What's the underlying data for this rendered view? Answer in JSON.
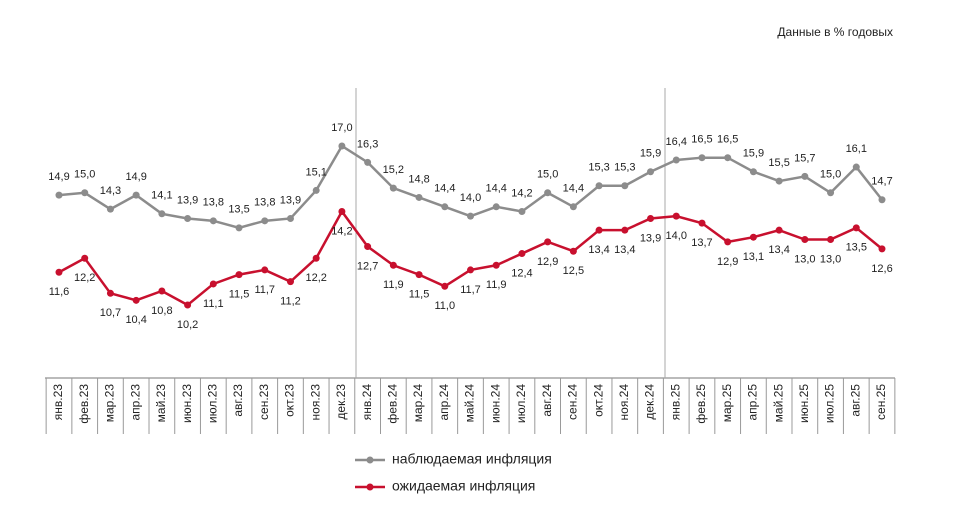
{
  "chart_data": {
    "type": "line",
    "subtitle": "Данные в % годовых",
    "categories": [
      "янв.23",
      "фев.23",
      "мар.23",
      "апр.23",
      "май.23",
      "июн.23",
      "июл.23",
      "авг.23",
      "сен.23",
      "окт.23",
      "ноя.23",
      "дек.23",
      "янв.24",
      "фев.24",
      "мар.24",
      "апр.24",
      "май.24",
      "июн.24",
      "июл.24",
      "авг.24",
      "сен.24",
      "окт.24",
      "ноя.24",
      "дек.24",
      "янв.25",
      "фев.25",
      "мар.25",
      "апр.25",
      "май.25",
      "июн.25",
      "июл.25",
      "авг.25",
      "сен.25"
    ],
    "series": [
      {
        "name": "наблюдаемая инфляция",
        "color": "#8c8c8c",
        "values": [
          14.9,
          15.0,
          14.3,
          14.9,
          14.1,
          13.9,
          13.8,
          13.5,
          13.8,
          13.9,
          15.1,
          17.0,
          16.3,
          15.2,
          14.8,
          14.4,
          14.0,
          14.4,
          14.2,
          15.0,
          14.4,
          15.3,
          15.3,
          15.9,
          16.4,
          16.5,
          16.5,
          15.9,
          15.5,
          15.7,
          15.0,
          16.1,
          14.7
        ],
        "value_labels": [
          "14,9",
          "15,0",
          "14,3",
          "14,9",
          "14,1",
          "13,9",
          "13,8",
          "13,5",
          "13,8",
          "13,9",
          "15,1",
          "17,0",
          "16,3",
          "15,2",
          "14,8",
          "14,4",
          "14,0",
          "14,4",
          "14,2",
          "15,0",
          "14,4",
          "15,3",
          "15,3",
          "15,9",
          "16,4",
          "16,5",
          "16,5",
          "15,9",
          "15,5",
          "15,7",
          "15,0",
          "16,1",
          "14,7"
        ]
      },
      {
        "name": "ожидаемая инфляция",
        "color": "#c8102e",
        "values": [
          11.6,
          12.2,
          10.7,
          10.4,
          10.8,
          10.2,
          11.1,
          11.5,
          11.7,
          11.2,
          12.2,
          14.2,
          12.7,
          11.9,
          11.5,
          11.0,
          11.7,
          11.9,
          12.4,
          12.9,
          12.5,
          13.4,
          13.4,
          13.9,
          14.0,
          13.7,
          12.9,
          13.1,
          13.4,
          13.0,
          13.0,
          13.5,
          12.6
        ],
        "value_labels": [
          "11,6",
          "12,2",
          "10,7",
          "10,4",
          "10,8",
          "10,2",
          "11,1",
          "11,5",
          "11,7",
          "11,2",
          "12,2",
          "14,2",
          "12,7",
          "11,9",
          "11,5",
          "11,0",
          "11,7",
          "11,9",
          "12,4",
          "12,9",
          "12,5",
          "13,4",
          "13,4",
          "13,9",
          "14,0",
          "13,7",
          "12,9",
          "13,1",
          "13,4",
          "13,0",
          "13,0",
          "13,5",
          "12,6"
        ]
      }
    ]
  }
}
